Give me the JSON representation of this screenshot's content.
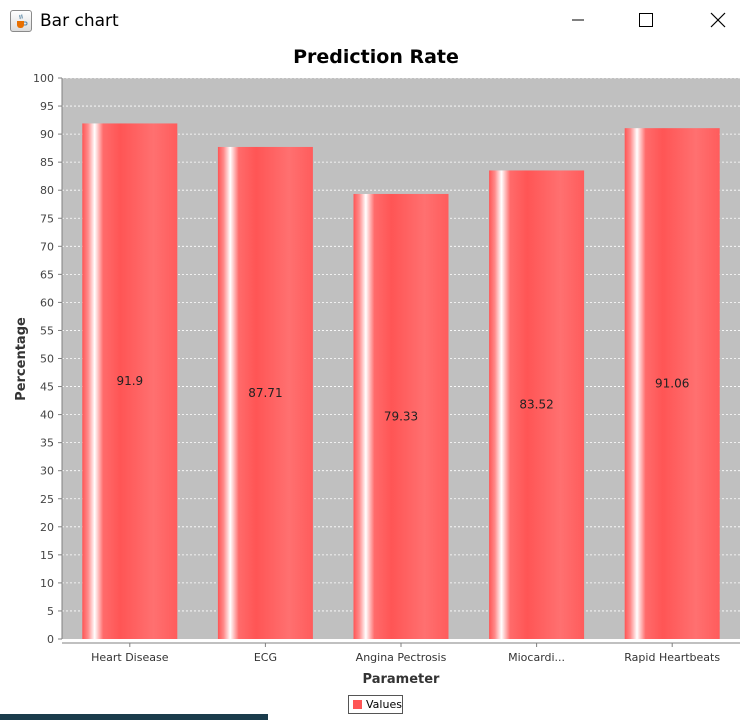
{
  "window": {
    "title": "Bar chart",
    "app_icon": "java-cup-icon",
    "controls": [
      "minimize-icon",
      "maximize-icon",
      "close-icon"
    ]
  },
  "chart_data": {
    "type": "bar",
    "title": "Prediction Rate",
    "xlabel": "Parameter",
    "ylabel": "Percentage",
    "categories": [
      "Heart Disease",
      "ECG",
      "Angina Pectrosis",
      "Miocardi...",
      "Rapid Heartbeats"
    ],
    "series": [
      {
        "name": "Values",
        "values": [
          91.9,
          87.71,
          79.33,
          83.52,
          91.06
        ],
        "color": "#ff5555"
      }
    ],
    "data_labels": [
      "91.9",
      "87.71",
      "79.33",
      "83.52",
      "91.06"
    ],
    "ylim": [
      0,
      100
    ],
    "yticks": [
      0,
      5,
      10,
      15,
      20,
      25,
      30,
      35,
      40,
      45,
      50,
      55,
      60,
      65,
      70,
      75,
      80,
      85,
      90,
      95,
      100
    ],
    "grid": true,
    "plot_background": "#c0c0c0",
    "legend": "bottom-center"
  }
}
